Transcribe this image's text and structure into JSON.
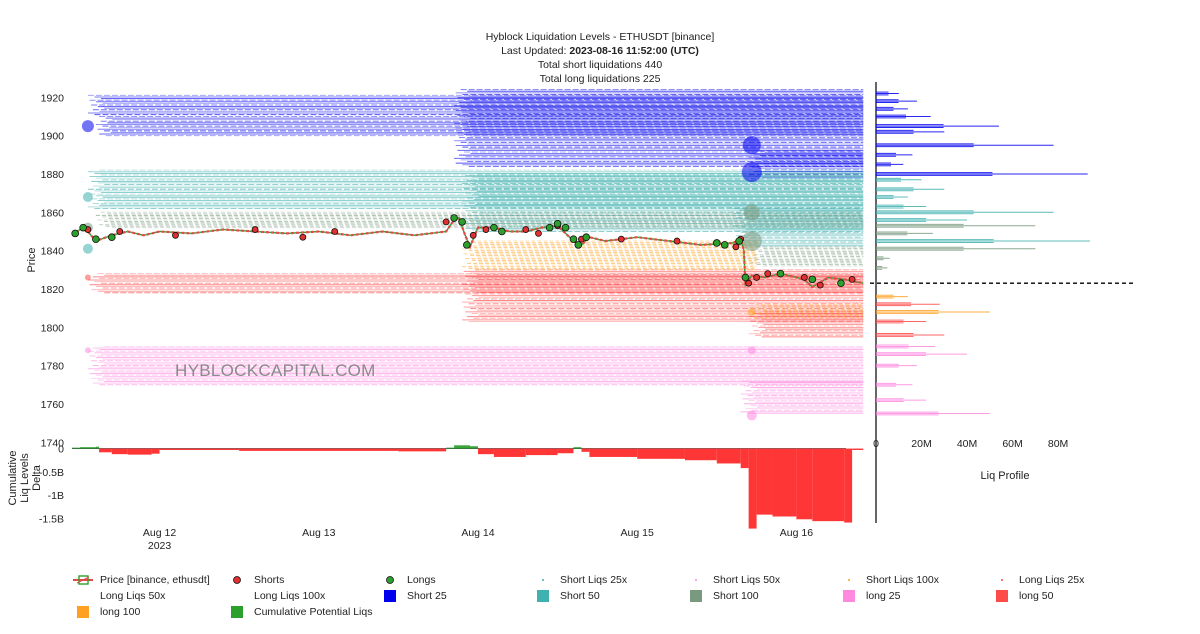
{
  "header": {
    "title": "Hyblock Liquidation Levels - ETHUSDT [binance]",
    "updated_prefix": "Last Updated: ",
    "updated_value": "2023-08-16 11:52:00 (UTC)",
    "short_total": "Total short liquidations 440",
    "long_total": "Total long liquidations 225"
  },
  "watermark": "HYBLOCKCAPITAL.COM",
  "colors": {
    "short25": "#0000ee",
    "short50": "#40b0b0",
    "short100": "#7a9a80",
    "long25": "#ff88e0",
    "long50": "#ff4a4a",
    "long100": "#ffa020",
    "cumulative": "#2ca02c",
    "delta_neg": "#ff2b2b",
    "price_up": "#2ca02c",
    "price_down": "#e24a4a"
  },
  "chart_data": {
    "type": "line",
    "title": "Hyblock Liquidation Levels - ETHUSDT [binance]",
    "ylabel": "Price",
    "ylim": [
      1737,
      1928
    ],
    "y_ticks": [
      1740,
      1760,
      1780,
      1800,
      1820,
      1840,
      1860,
      1880,
      1900,
      1920
    ],
    "x_ticks": [
      "Aug 12",
      "Aug 13",
      "Aug 14",
      "Aug 15",
      "Aug 16"
    ],
    "x_year_label": "2023",
    "xlim_days": [
      11.45,
      16.5
    ],
    "current_price": 1823,
    "price_series": {
      "name": "Price [binance, ethusdt]",
      "x_day": [
        11.45,
        11.5,
        11.52,
        11.55,
        11.6,
        11.7,
        11.8,
        11.9,
        12.0,
        12.2,
        12.4,
        12.6,
        12.8,
        13.0,
        13.2,
        13.4,
        13.6,
        13.8,
        13.85,
        13.88,
        13.92,
        13.95,
        14.0,
        14.1,
        14.2,
        14.3,
        14.4,
        14.5,
        14.6,
        14.65,
        14.7,
        14.8,
        15.0,
        15.2,
        15.4,
        15.6,
        15.65,
        15.67,
        15.68,
        15.72,
        15.8,
        15.9,
        15.95,
        16.0,
        16.05,
        16.1,
        16.2,
        16.3,
        16.42
      ],
      "y": [
        1848,
        1851,
        1852,
        1850,
        1845,
        1848,
        1850,
        1848,
        1850,
        1849,
        1851,
        1850,
        1849,
        1850,
        1848,
        1850,
        1848,
        1850,
        1856,
        1857,
        1848,
        1842,
        1852,
        1852,
        1850,
        1850,
        1852,
        1853,
        1845,
        1843,
        1847,
        1845,
        1847,
        1845,
        1843,
        1844,
        1846,
        1840,
        1822,
        1827,
        1826,
        1828,
        1827,
        1826,
        1825,
        1821,
        1826,
        1825,
        1823
      ]
    },
    "shorts_markers": {
      "name": "Shorts",
      "x_day": [
        11.55,
        11.75,
        12.1,
        12.6,
        12.9,
        13.1,
        13.8,
        13.97,
        14.05,
        14.3,
        14.38,
        14.5,
        14.65,
        14.9,
        15.25,
        15.5,
        15.62,
        15.65,
        15.7,
        15.75,
        15.82,
        15.9,
        16.05,
        16.15,
        16.35
      ],
      "y": [
        1851,
        1850,
        1848,
        1851,
        1847,
        1850,
        1855,
        1848,
        1851,
        1851,
        1849,
        1853,
        1846,
        1846,
        1845,
        1844,
        1842,
        1846,
        1823,
        1826,
        1828,
        1828,
        1826,
        1822,
        1825
      ]
    },
    "longs_markers": {
      "name": "Longs",
      "x_day": [
        11.47,
        11.52,
        11.6,
        11.7,
        13.85,
        13.9,
        13.93,
        14.1,
        14.15,
        14.45,
        14.5,
        14.55,
        14.6,
        14.63,
        14.68,
        15.5,
        15.55,
        15.64,
        15.68,
        15.9,
        16.1,
        16.28
      ],
      "y": [
        1849,
        1852,
        1846,
        1847,
        1857,
        1855,
        1843,
        1852,
        1850,
        1852,
        1854,
        1852,
        1846,
        1843,
        1847,
        1844,
        1843,
        1845,
        1826,
        1828,
        1825,
        1823
      ]
    },
    "liq_bands": [
      {
        "name": "Short 25",
        "color": "short25",
        "ymin": 1878,
        "ymax": 1925,
        "bands": [
          [
            1911,
            1921,
            11.55,
            16.42
          ],
          [
            1900,
            1910,
            11.6,
            16.42
          ],
          [
            1884,
            1924,
            13.85,
            16.42
          ],
          [
            1878,
            1892,
            15.7,
            16.42
          ]
        ]
      },
      {
        "name": "Short 50",
        "color": "short50",
        "ymin": 1842,
        "ymax": 1882,
        "bands": [
          [
            1862,
            1882,
            11.55,
            16.42
          ],
          [
            1850,
            1880,
            13.9,
            16.42
          ],
          [
            1842,
            1862,
            15.6,
            16.42
          ]
        ]
      },
      {
        "name": "Short 100",
        "color": "short100",
        "ymin": 1828,
        "ymax": 1860,
        "bands": [
          [
            1852,
            1860,
            11.6,
            16.42
          ],
          [
            1832,
            1842,
            15.7,
            16.42
          ]
        ]
      },
      {
        "name": "long 25",
        "color": "long25",
        "ymin": 1755,
        "ymax": 1790,
        "bands": [
          [
            1770,
            1790,
            11.55,
            16.42
          ],
          [
            1755,
            1772,
            15.65,
            16.42
          ]
        ]
      },
      {
        "name": "long 50",
        "color": "long50",
        "ymin": 1795,
        "ymax": 1830,
        "bands": [
          [
            1818,
            1828,
            11.55,
            16.42
          ],
          [
            1803,
            1830,
            13.9,
            16.42
          ],
          [
            1795,
            1808,
            15.7,
            16.42
          ]
        ]
      },
      {
        "name": "long 100",
        "color": "long100",
        "ymin": 1830,
        "ymax": 1846,
        "bands": [
          [
            1830,
            1845,
            13.9,
            15.75
          ],
          [
            1805,
            1812,
            15.7,
            16.42
          ]
        ]
      }
    ],
    "bubbles": [
      {
        "x_day": 11.55,
        "y": 1905,
        "color": "short25",
        "r": 6
      },
      {
        "x_day": 15.72,
        "y": 1895,
        "color": "short25",
        "r": 9
      },
      {
        "x_day": 15.72,
        "y": 1881,
        "color": "short25",
        "r": 10
      },
      {
        "x_day": 11.55,
        "y": 1868,
        "color": "short50",
        "r": 5
      },
      {
        "x_day": 11.55,
        "y": 1841,
        "color": "short50",
        "r": 5
      },
      {
        "x_day": 11.55,
        "y": 1852,
        "color": "short100",
        "r": 5
      },
      {
        "x_day": 15.72,
        "y": 1860,
        "color": "short100",
        "r": 8
      },
      {
        "x_day": 15.72,
        "y": 1845,
        "color": "short100",
        "r": 10
      },
      {
        "x_day": 11.55,
        "y": 1826,
        "color": "long50",
        "r": 3
      },
      {
        "x_day": 11.55,
        "y": 1788,
        "color": "long25",
        "r": 3
      },
      {
        "x_day": 15.72,
        "y": 1788,
        "color": "long25",
        "r": 4
      },
      {
        "x_day": 15.72,
        "y": 1754,
        "color": "long25",
        "r": 5
      },
      {
        "x_day": 15.72,
        "y": 1808,
        "color": "long100",
        "r": 4
      }
    ],
    "delta_panel": {
      "ylabel": "Cumulative Liq Levels Delta",
      "ylim": [
        -1.6,
        0.12
      ],
      "y_ticks": [
        0,
        -0.5,
        -1,
        -1.5
      ],
      "y_tick_labels": [
        "0",
        "-0.5B",
        "-1B",
        "-1.5B"
      ],
      "series": {
        "name": "Cumulative Potential Liqs",
        "x_day": [
          11.45,
          11.5,
          11.6,
          11.62,
          11.7,
          11.8,
          11.95,
          12.0,
          12.5,
          13.5,
          13.8,
          13.85,
          13.95,
          14.0,
          14.1,
          14.3,
          14.5,
          14.6,
          14.65,
          14.7,
          15.0,
          15.3,
          15.5,
          15.65,
          15.7,
          15.75,
          15.85,
          16.0,
          16.1,
          16.3,
          16.35,
          16.42
        ],
        "y": [
          0.02,
          0.03,
          0.04,
          -0.08,
          -0.12,
          -0.13,
          -0.11,
          -0.03,
          -0.05,
          -0.06,
          0.02,
          0.07,
          0.05,
          -0.12,
          -0.18,
          -0.14,
          -0.1,
          0.03,
          -0.07,
          -0.18,
          -0.22,
          -0.25,
          -0.32,
          -0.42,
          -1.72,
          -1.42,
          -1.46,
          -1.52,
          -1.56,
          -1.59,
          -0.03,
          -1.58
        ]
      }
    },
    "profile_panel": {
      "xlabel": "Liq Profile",
      "xlim": [
        0,
        105
      ],
      "x_ticks": [
        0,
        20,
        40,
        60,
        80
      ],
      "x_tick_labels": [
        "0",
        "20M",
        "40M",
        "60M",
        "80M"
      ],
      "bins": [
        {
          "y": 1922,
          "v": 10,
          "c": "short25"
        },
        {
          "y": 1918,
          "v": 18,
          "c": "short25"
        },
        {
          "y": 1914,
          "v": 14,
          "c": "short25"
        },
        {
          "y": 1910,
          "v": 24,
          "c": "short25"
        },
        {
          "y": 1905,
          "v": 54,
          "c": "short25"
        },
        {
          "y": 1902,
          "v": 30,
          "c": "short25"
        },
        {
          "y": 1895,
          "v": 78,
          "c": "short25"
        },
        {
          "y": 1890,
          "v": 16,
          "c": "short25"
        },
        {
          "y": 1885,
          "v": 12,
          "c": "short25"
        },
        {
          "y": 1880,
          "v": 93,
          "c": "short25"
        },
        {
          "y": 1877,
          "v": 20,
          "c": "short50"
        },
        {
          "y": 1872,
          "v": 30,
          "c": "short50"
        },
        {
          "y": 1868,
          "v": 14,
          "c": "short50"
        },
        {
          "y": 1863,
          "v": 22,
          "c": "short50"
        },
        {
          "y": 1860,
          "v": 78,
          "c": "short50"
        },
        {
          "y": 1856,
          "v": 40,
          "c": "short50"
        },
        {
          "y": 1853,
          "v": 70,
          "c": "short100"
        },
        {
          "y": 1849,
          "v": 25,
          "c": "short100"
        },
        {
          "y": 1845,
          "v": 94,
          "c": "short50"
        },
        {
          "y": 1841,
          "v": 70,
          "c": "short100"
        },
        {
          "y": 1836,
          "v": 6,
          "c": "short100"
        },
        {
          "y": 1831,
          "v": 5,
          "c": "short100"
        },
        {
          "y": 1816,
          "v": 14,
          "c": "long100"
        },
        {
          "y": 1812,
          "v": 28,
          "c": "long50"
        },
        {
          "y": 1808,
          "v": 50,
          "c": "long100"
        },
        {
          "y": 1803,
          "v": 22,
          "c": "long50"
        },
        {
          "y": 1796,
          "v": 30,
          "c": "long50"
        },
        {
          "y": 1790,
          "v": 26,
          "c": "long25"
        },
        {
          "y": 1786,
          "v": 40,
          "c": "long25"
        },
        {
          "y": 1780,
          "v": 18,
          "c": "long25"
        },
        {
          "y": 1770,
          "v": 16,
          "c": "long25"
        },
        {
          "y": 1762,
          "v": 22,
          "c": "long25"
        },
        {
          "y": 1755,
          "v": 50,
          "c": "long25"
        }
      ]
    }
  },
  "legend": [
    {
      "key": "price",
      "label": "Price [binance, ethusdt]"
    },
    {
      "key": "shorts",
      "label": "Shorts"
    },
    {
      "key": "longs",
      "label": "Longs"
    },
    {
      "key": "sl25",
      "label": "Short Liqs 25x"
    },
    {
      "key": "sl50",
      "label": "Short Liqs 50x"
    },
    {
      "key": "sl100",
      "label": "Short Liqs 100x"
    },
    {
      "key": "ll25",
      "label": "Long Liqs 25x"
    },
    {
      "key": "ll50",
      "label": "Long Liqs 50x"
    },
    {
      "key": "ll100",
      "label": "Long Liqs 100x"
    },
    {
      "key": "s25",
      "label": "Short 25"
    },
    {
      "key": "s50",
      "label": "Short 50"
    },
    {
      "key": "s100",
      "label": "Short 100"
    },
    {
      "key": "l25",
      "label": "long 25"
    },
    {
      "key": "l50",
      "label": "long 50"
    },
    {
      "key": "l100",
      "label": "long 100"
    },
    {
      "key": "cum",
      "label": "Cumulative Potential Liqs"
    }
  ]
}
